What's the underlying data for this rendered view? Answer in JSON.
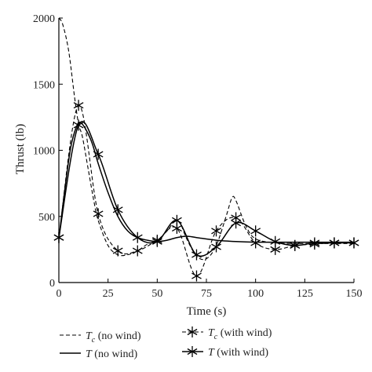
{
  "chart_data": {
    "type": "line",
    "xlabel": "Time (s)",
    "ylabel": "Thrust (lb)",
    "xlim": [
      0,
      150
    ],
    "ylim": [
      0,
      2000
    ],
    "xticks": [
      0,
      25,
      50,
      75,
      100,
      125,
      150
    ],
    "yticks": [
      0,
      500,
      1000,
      1500,
      2000
    ],
    "grid": false,
    "legend_position": "bottom",
    "series": [
      {
        "name_main": "T",
        "name_sub": "c",
        "name_suffix": " (no wind)",
        "line_style": "dashed",
        "marker": "none",
        "color": "#000000",
        "x": [
          0,
          2,
          5,
          8,
          10,
          12,
          15,
          18,
          20,
          25,
          30,
          35,
          40,
          45,
          50,
          55,
          58,
          60,
          62,
          65,
          70,
          75,
          80,
          85,
          88,
          90,
          95,
          100,
          110,
          120,
          130,
          140,
          150
        ],
        "y": [
          2000,
          1950,
          1750,
          1400,
          1200,
          1100,
          850,
          600,
          470,
          280,
          210,
          210,
          240,
          290,
          320,
          390,
          450,
          470,
          440,
          330,
          200,
          180,
          280,
          500,
          640,
          620,
          430,
          330,
          300,
          295,
          295,
          295,
          295
        ]
      },
      {
        "name_main": "T",
        "name_sub": "",
        "name_suffix": " (no wind)",
        "line_style": "solid",
        "marker": "none",
        "color": "#000000",
        "x": [
          0,
          3,
          6,
          9,
          11,
          14,
          17,
          20,
          25,
          30,
          35,
          40,
          45,
          50,
          55,
          60,
          65,
          70,
          80,
          90,
          100,
          110,
          120,
          130,
          140,
          150
        ],
        "y": [
          330,
          700,
          1020,
          1180,
          1210,
          1150,
          1050,
          900,
          680,
          500,
          390,
          340,
          320,
          310,
          320,
          340,
          350,
          340,
          320,
          310,
          305,
          305,
          305,
          305,
          305,
          305
        ]
      },
      {
        "name_main": "T",
        "name_sub": "c",
        "name_suffix": " (with wind)",
        "line_style": "dashed",
        "marker": "asterisk",
        "color": "#000000",
        "x": [
          0,
          10,
          20,
          30,
          40,
          50,
          60,
          70,
          80,
          90,
          100,
          110,
          120,
          130,
          140,
          150
        ],
        "y": [
          340,
          1340,
          520,
          240,
          240,
          320,
          410,
          50,
          390,
          490,
          300,
          250,
          280,
          290,
          300,
          300
        ]
      },
      {
        "name_main": "T",
        "name_sub": "",
        "name_suffix": " (with wind)",
        "line_style": "solid",
        "marker": "asterisk",
        "color": "#000000",
        "x": [
          0,
          10,
          20,
          30,
          40,
          50,
          60,
          70,
          80,
          90,
          100,
          110,
          120,
          130,
          140,
          150
        ],
        "y": [
          340,
          1190,
          970,
          550,
          340,
          310,
          470,
          210,
          270,
          450,
          390,
          310,
          280,
          300,
          300,
          300
        ]
      }
    ]
  }
}
